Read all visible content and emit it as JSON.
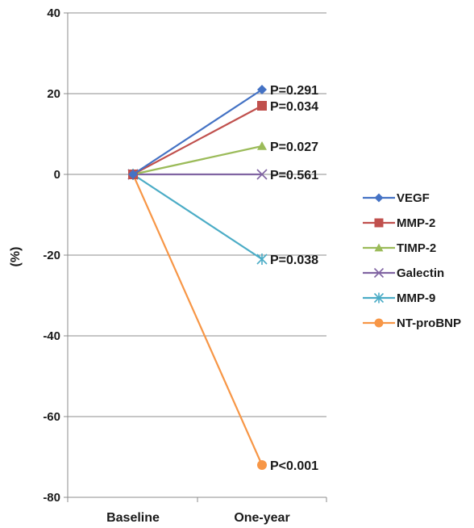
{
  "chart_data": {
    "type": "line",
    "title": "",
    "xlabel": "",
    "ylabel": "(%)",
    "categories": [
      "Baseline",
      "One-year"
    ],
    "ylim": [
      -80,
      40
    ],
    "yticks": [
      40,
      20,
      0,
      -20,
      -40,
      -60,
      -80
    ],
    "grid": "horizontal",
    "legend_position": "right",
    "series": [
      {
        "name": "VEGF",
        "values": [
          0,
          21
        ],
        "color": "#4472C4",
        "marker": "diamond",
        "annotation": "P=0.291"
      },
      {
        "name": "MMP-2",
        "values": [
          0,
          17
        ],
        "color": "#C0504D",
        "marker": "square",
        "annotation": "P=0.034"
      },
      {
        "name": "TIMP-2",
        "values": [
          0,
          7
        ],
        "color": "#9BBB59",
        "marker": "triangle",
        "annotation": "P=0.027"
      },
      {
        "name": "Galectin",
        "values": [
          0,
          0
        ],
        "color": "#8064A2",
        "marker": "x",
        "annotation": "P=0.561"
      },
      {
        "name": "MMP-9",
        "values": [
          0,
          -21
        ],
        "color": "#4BACC6",
        "marker": "asterisk",
        "annotation": "P=0.038"
      },
      {
        "name": "NT-proBNP",
        "values": [
          0,
          -72
        ],
        "color": "#F79646",
        "marker": "circle",
        "annotation": "P<0.001"
      }
    ]
  }
}
